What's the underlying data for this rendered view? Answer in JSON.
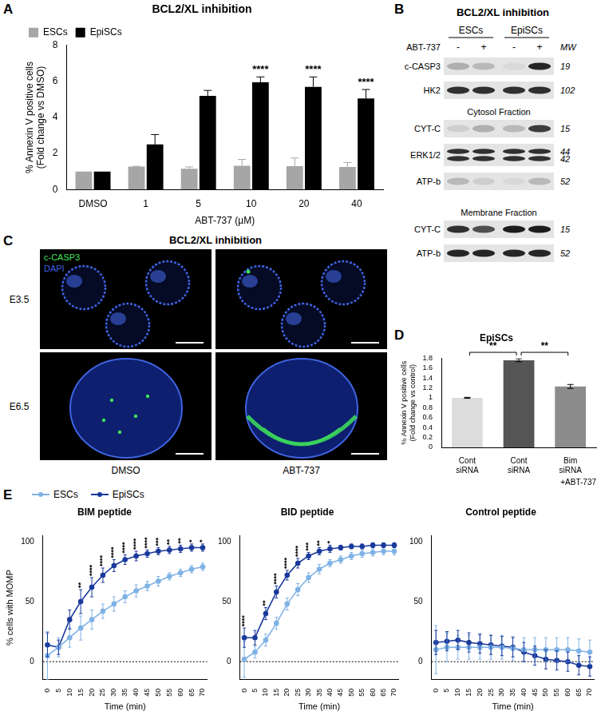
{
  "chart_data": [
    {
      "panel": "A",
      "type": "bar",
      "title": "BCL2/XL inhibition",
      "categories": [
        "DMSO",
        "1",
        "5",
        "10",
        "20",
        "40"
      ],
      "x_label": "ABT-737 (µM)",
      "y_label": [
        "% Annexin V positive cells",
        "(Fold change vs DMSO)"
      ],
      "series": [
        {
          "name": "ESCs",
          "color": "#a6a6a6",
          "values": [
            1,
            1.27,
            1.15,
            1.32,
            1.3,
            1.25
          ],
          "errors": [
            0,
            0.02,
            0.1,
            0.35,
            0.45,
            0.25
          ]
        },
        {
          "name": "EpiSCs",
          "color": "#000000",
          "values": [
            1,
            2.5,
            5.2,
            5.95,
            5.7,
            5.05
          ],
          "errors": [
            0,
            0.55,
            0.3,
            0.3,
            0.55,
            0.5
          ]
        }
      ],
      "ylim": [
        0,
        8
      ],
      "yticks": [
        0,
        2,
        4,
        6,
        8
      ],
      "grid": false,
      "legend": "upper left",
      "annotations": [
        {
          "category": "10",
          "series": "EpiSCs",
          "text": "****"
        },
        {
          "category": "20",
          "series": "EpiSCs",
          "text": "****"
        },
        {
          "category": "40",
          "series": "EpiSCs",
          "text": "****"
        }
      ]
    },
    {
      "panel": "D",
      "type": "bar",
      "title": "EpiSCs",
      "categories": [
        "Cont siRNA",
        "Cont siRNA",
        "Bim siRNA"
      ],
      "values": [
        1,
        1.76,
        1.23
      ],
      "errors": [
        0.01,
        0.03,
        0.04
      ],
      "colors": [
        "#dcdcdc",
        "#555555",
        "#8c8c8c"
      ],
      "x_label": "+ABT-737",
      "y_label": [
        "% Annexin V positive cells",
        "(Fold change vs control)"
      ],
      "ylim": [
        0,
        1.8
      ],
      "yticks": [
        0,
        0.2,
        0.4,
        0.6,
        0.8,
        1,
        1.2,
        1.4,
        1.6,
        1.8
      ],
      "grid": false,
      "comparisons": [
        {
          "between": [
            0,
            1
          ],
          "text": "**"
        },
        {
          "between": [
            1,
            2
          ],
          "text": "**"
        }
      ]
    },
    {
      "panel": "E",
      "type": "line",
      "title": "BIM peptide",
      "x": [
        0,
        5,
        10,
        15,
        20,
        25,
        30,
        35,
        40,
        45,
        50,
        55,
        60,
        65,
        70
      ],
      "series": [
        {
          "name": "ESCs",
          "color": "#7fb2e5",
          "marker": "circle",
          "values": [
            5,
            12,
            20,
            28,
            35,
            42,
            48,
            54,
            59,
            63,
            67,
            71,
            74,
            77,
            79
          ],
          "errors": [
            20,
            8,
            8,
            10,
            8,
            6,
            6,
            5,
            5,
            4,
            4,
            3,
            3,
            3,
            3
          ]
        },
        {
          "name": "EpiSCs",
          "color": "#1a3a9c",
          "marker": "circle",
          "values": [
            14,
            12,
            35,
            50,
            62,
            72,
            80,
            85,
            88,
            90,
            92,
            93,
            94,
            95,
            95
          ],
          "errors": [
            10,
            6,
            8,
            10,
            8,
            6,
            5,
            4,
            4,
            3,
            3,
            3,
            3,
            3,
            3
          ]
        }
      ],
      "x_label": "Time (min)",
      "y_label": "% cells with MOMP",
      "xlim": [
        -2,
        72
      ],
      "xticks": [
        0,
        5,
        10,
        15,
        20,
        25,
        30,
        35,
        40,
        45,
        50,
        55,
        60,
        65,
        70
      ],
      "ylim": [
        -15,
        105
      ],
      "yticks": [
        0,
        50,
        100
      ],
      "grid": false,
      "legend": "upper left",
      "reference_lines": [
        0
      ],
      "annotations": [
        {
          "x": 15,
          "text": "**"
        },
        {
          "x": 20,
          "text": "****"
        },
        {
          "x": 25,
          "text": "****"
        },
        {
          "x": 30,
          "text": "****"
        },
        {
          "x": 35,
          "text": "****"
        },
        {
          "x": 40,
          "text": "****"
        },
        {
          "x": 45,
          "text": "****"
        },
        {
          "x": 50,
          "text": "***"
        },
        {
          "x": 55,
          "text": "**"
        },
        {
          "x": 60,
          "text": "**"
        },
        {
          "x": 65,
          "text": "*"
        },
        {
          "x": 70,
          "text": "*"
        }
      ]
    },
    {
      "panel": "E",
      "type": "line",
      "title": "BID peptide",
      "x": [
        0,
        5,
        10,
        15,
        20,
        25,
        30,
        35,
        40,
        45,
        50,
        55,
        60,
        65,
        70
      ],
      "series": [
        {
          "name": "ESCs",
          "color": "#7fb2e5",
          "marker": "circle",
          "values": [
            2,
            8,
            18,
            32,
            48,
            60,
            70,
            77,
            82,
            85,
            88,
            90,
            91,
            92,
            92
          ],
          "errors": [
            15,
            5,
            5,
            5,
            5,
            5,
            4,
            4,
            3,
            3,
            3,
            3,
            3,
            3,
            3
          ]
        },
        {
          "name": "EpiSCs",
          "color": "#1a3a9c",
          "marker": "circle",
          "values": [
            20,
            20,
            40,
            58,
            72,
            82,
            88,
            92,
            94,
            95,
            96,
            96,
            97,
            97,
            97
          ],
          "errors": [
            8,
            6,
            5,
            5,
            4,
            4,
            3,
            3,
            3,
            2,
            2,
            2,
            2,
            2,
            2
          ]
        }
      ],
      "x_label": "Time (min)",
      "xlim": [
        -2,
        72
      ],
      "xticks": [
        0,
        5,
        10,
        15,
        20,
        25,
        30,
        35,
        40,
        45,
        50,
        55,
        60,
        65,
        70
      ],
      "ylim": [
        -15,
        105
      ],
      "yticks": [
        0,
        50,
        100
      ],
      "grid": false,
      "reference_lines": [
        0
      ],
      "annotations": [
        {
          "x": 0,
          "text": "****"
        },
        {
          "x": 10,
          "text": "**"
        },
        {
          "x": 15,
          "text": "****"
        },
        {
          "x": 20,
          "text": "****"
        },
        {
          "x": 25,
          "text": "****"
        },
        {
          "x": 30,
          "text": "***"
        },
        {
          "x": 35,
          "text": "**"
        },
        {
          "x": 40,
          "text": "*"
        }
      ]
    },
    {
      "panel": "E",
      "type": "line",
      "title": "Control peptide",
      "x": [
        0,
        5,
        10,
        15,
        20,
        25,
        30,
        35,
        40,
        45,
        50,
        55,
        60,
        65,
        70
      ],
      "series": [
        {
          "name": "ESCs",
          "color": "#7fb2e5",
          "marker": "circle",
          "values": [
            10,
            12,
            12,
            12,
            12,
            12,
            12,
            11,
            10,
            10,
            10,
            10,
            10,
            9,
            8
          ],
          "errors": [
            20,
            12,
            10,
            10,
            10,
            10,
            10,
            10,
            10,
            10,
            10,
            10,
            10,
            10,
            10
          ]
        },
        {
          "name": "EpiSCs",
          "color": "#1a3a9c",
          "marker": "circle",
          "values": [
            16,
            17,
            18,
            16,
            15,
            14,
            13,
            12,
            8,
            5,
            2,
            1,
            0,
            -3,
            -4
          ],
          "errors": [
            10,
            8,
            8,
            8,
            8,
            8,
            8,
            8,
            8,
            8,
            8,
            8,
            8,
            8,
            8
          ]
        }
      ],
      "x_label": "Time (min)",
      "xlim": [
        -2,
        72
      ],
      "xticks": [
        0,
        5,
        10,
        15,
        20,
        25,
        30,
        35,
        40,
        45,
        50,
        55,
        60,
        65,
        70
      ],
      "ylim": [
        -15,
        105
      ],
      "yticks": [
        0,
        50,
        100
      ],
      "grid": false,
      "reference_lines": [
        0
      ]
    }
  ],
  "blot": {
    "panel": "B",
    "title": "BCL2/XL inhibition",
    "groups": [
      "ESCs",
      "EpiSCs"
    ],
    "treatment": "ABT-737",
    "lanes": [
      "-",
      "+",
      "-",
      "+"
    ],
    "mw_label": "MW",
    "rows": [
      {
        "label": "c-CASP3",
        "mw": [
          19
        ],
        "bands": [
          0.25,
          0.2,
          0.05,
          0.9
        ]
      },
      {
        "label": "HK2",
        "mw": [
          102
        ],
        "bands": [
          0.85,
          0.85,
          0.85,
          0.85
        ]
      },
      {
        "heading": "Cytosol Fraction"
      },
      {
        "label": "CYT-C",
        "mw": [
          15
        ],
        "bands": [
          0.1,
          0.25,
          0.2,
          0.8
        ]
      },
      {
        "label": "ERK1/2",
        "mw": [
          44,
          42
        ],
        "bands": [
          0.85,
          0.85,
          0.85,
          0.85
        ]
      },
      {
        "label": "ATP-b",
        "mw": [
          52
        ],
        "bands": [
          0.2,
          0.1,
          0.05,
          0.2
        ]
      },
      {
        "heading": "Membrane Fraction"
      },
      {
        "label": "CYT-C",
        "mw": [
          15
        ],
        "bands": [
          0.85,
          0.7,
          0.95,
          0.95
        ]
      },
      {
        "label": "ATP-b",
        "mw": [
          52
        ],
        "bands": [
          0.9,
          0.9,
          0.9,
          0.9
        ]
      }
    ]
  },
  "images": {
    "panel": "C",
    "title": "BCL2/XL inhibition",
    "channels": [
      {
        "name": "c-CASP3",
        "color": "#3ee05a"
      },
      {
        "name": "DAPI",
        "color": "#3f63e0"
      }
    ],
    "rows": [
      "E3.5",
      "E6.5"
    ],
    "columns": [
      "DMSO",
      "ABT-737"
    ]
  }
}
